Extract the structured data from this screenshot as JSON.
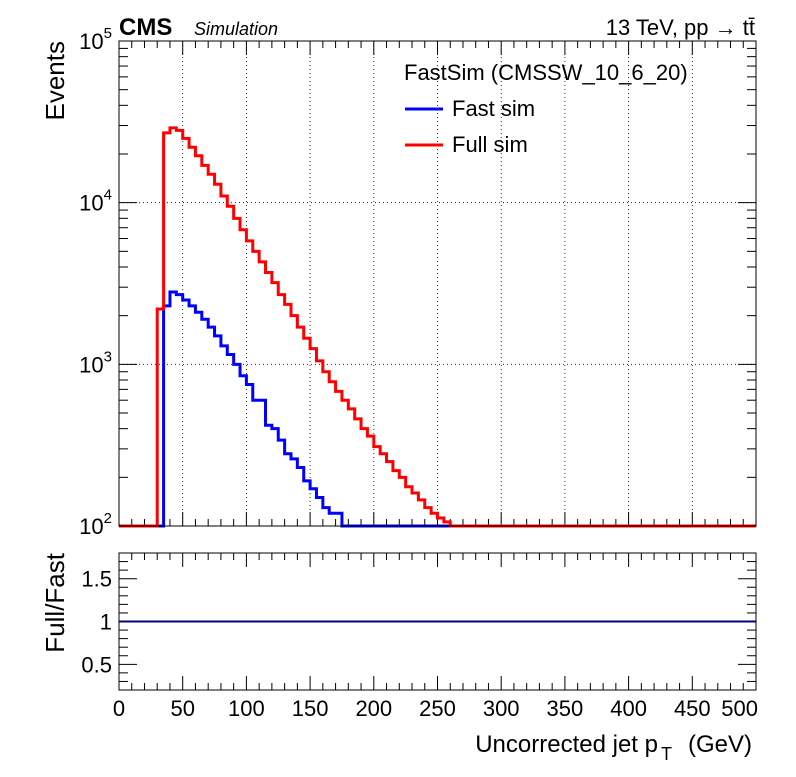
{
  "header": {
    "experiment": "CMS",
    "status": "Simulation",
    "energy_label": "13 TeV, pp",
    "process_label": "tt̄"
  },
  "legend": {
    "header": "FastSim (CMSSW_10_6_20)",
    "placement": "top-right",
    "entries": [
      "Fast sim",
      "Full sim"
    ]
  },
  "colors": {
    "fast_sim": "#0000ff",
    "full_sim": "#ff0000",
    "ratio_line": "#000080",
    "grid": "#000000"
  },
  "chart_data": [
    {
      "type": "line",
      "histogram_style": "step",
      "panel": "main",
      "ylabel": "Events",
      "yscale": "log",
      "ylim": [
        100,
        100000
      ],
      "xlim": [
        0,
        500
      ],
      "grid": true,
      "y_tick_labels": [
        "10^2",
        "10^3",
        "10^4",
        "10^5"
      ],
      "bin_width": 5,
      "x_bin_low_edges": [
        30,
        35,
        40,
        45,
        50,
        55,
        60,
        65,
        70,
        75,
        80,
        85,
        90,
        95,
        100,
        105,
        110,
        115,
        120,
        125,
        130,
        135,
        140,
        145,
        150,
        155,
        160,
        165,
        170,
        175,
        180,
        185,
        190,
        195,
        200,
        205,
        210,
        215,
        220,
        225,
        230,
        235,
        240,
        245,
        250,
        255,
        260,
        265,
        270,
        275,
        280,
        285,
        290,
        295,
        300,
        305
      ],
      "series": [
        {
          "name": "Fast sim",
          "color": "#0000ff",
          "values": [
            100,
            2300,
            2800,
            2700,
            2500,
            2300,
            2100,
            1900,
            1700,
            1500,
            1300,
            1150,
            1000,
            850,
            750,
            600,
            600,
            420,
            400,
            340,
            280,
            260,
            230,
            190,
            170,
            150,
            130,
            120,
            120,
            100,
            100,
            100,
            100,
            100,
            100,
            100,
            100,
            100,
            100,
            100,
            100,
            100,
            100,
            100,
            100,
            100,
            100,
            100,
            100,
            100,
            100,
            100,
            100,
            100,
            100,
            100
          ]
        },
        {
          "name": "Full sim",
          "color": "#ff0000",
          "values": [
            2200,
            27000,
            29000,
            28000,
            25000,
            22000,
            19500,
            17000,
            15000,
            13000,
            11000,
            9500,
            8000,
            6800,
            5800,
            5000,
            4300,
            3700,
            3200,
            2700,
            2350,
            2000,
            1700,
            1450,
            1250,
            1050,
            900,
            780,
            680,
            600,
            530,
            460,
            400,
            360,
            310,
            280,
            250,
            220,
            200,
            175,
            160,
            145,
            130,
            120,
            112,
            106,
            100,
            100,
            100,
            100,
            100,
            100,
            100,
            100,
            100,
            100
          ]
        }
      ]
    },
    {
      "type": "line",
      "panel": "ratio",
      "xlabel": "Uncorrected jet p",
      "xlabel_subscript": "T",
      "xlabel_unit": "(GeV)",
      "ylabel": "Full/Fast",
      "ylim": [
        0.2,
        1.8
      ],
      "xlim": [
        0,
        500
      ],
      "y_tick_labels": [
        "0.5",
        "1",
        "1.5"
      ],
      "x_tick_labels": [
        "0",
        "50",
        "100",
        "150",
        "200",
        "250",
        "300",
        "350",
        "400",
        "450",
        "500"
      ],
      "series": [
        {
          "color": "#000080",
          "x": [
            0,
            500
          ],
          "values": [
            1,
            1
          ]
        }
      ]
    }
  ]
}
